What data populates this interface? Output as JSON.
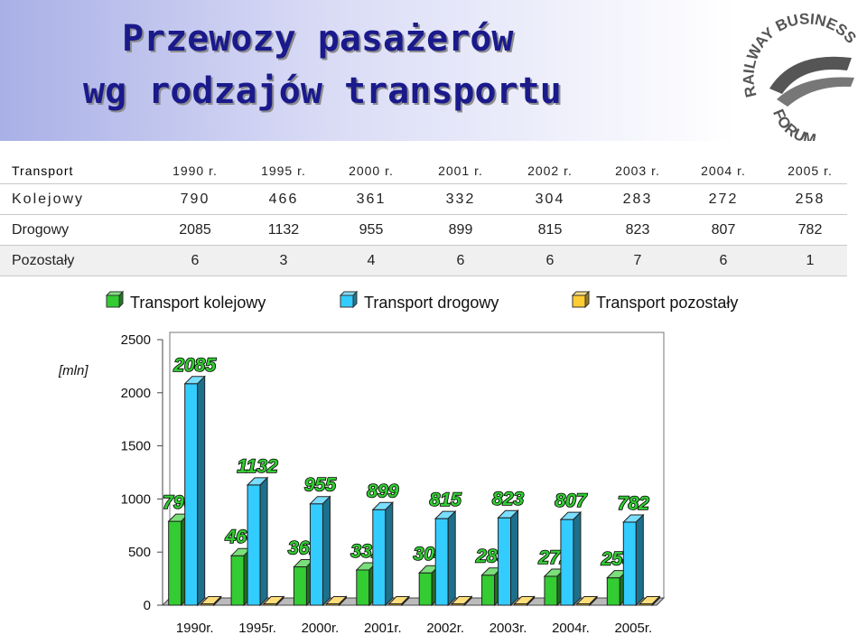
{
  "title": {
    "line1": "Przewozy pasażerów",
    "line2": "wg rodzajów transportu"
  },
  "logo": {
    "text_top": "RAILWAY BUSINESS",
    "text_bottom": "FORUM"
  },
  "table": {
    "header_label": "Transport",
    "headers": [
      "1990 r.",
      "1995 r.",
      "2000 r.",
      "2001 r.",
      "2002 r.",
      "2003 r.",
      "2004 r.",
      "2005 r."
    ],
    "rows": [
      {
        "label": "Kolejowy",
        "values": [
          "790",
          "466",
          "361",
          "332",
          "304",
          "283",
          "272",
          "258"
        ]
      },
      {
        "label": "Drogowy",
        "values": [
          "2085",
          "1132",
          "955",
          "899",
          "815",
          "823",
          "807",
          "782"
        ]
      },
      {
        "label": "Pozostały",
        "values": [
          "6",
          "3",
          "4",
          "6",
          "6",
          "7",
          "6",
          "1"
        ]
      }
    ]
  },
  "chart_data": {
    "type": "bar",
    "categories": [
      "1990r.",
      "1995r.",
      "2000r.",
      "2001r.",
      "2002r.",
      "2003r.",
      "2004r.",
      "2005r."
    ],
    "series": [
      {
        "name": "Transport kolejowy",
        "values": [
          790,
          466,
          361,
          332,
          304,
          283,
          272,
          258
        ],
        "color": "#33cc33"
      },
      {
        "name": "Transport drogowy",
        "values": [
          2085,
          1132,
          955,
          899,
          815,
          823,
          807,
          782
        ],
        "color": "#33ccff"
      },
      {
        "name": "Transport pozostały",
        "values": [
          6,
          3,
          4,
          6,
          6,
          7,
          6,
          1
        ],
        "color": "#ffcc33"
      }
    ],
    "ylabel": "[mln]",
    "ylim": [
      0,
      2500
    ],
    "yticks": [
      0,
      500,
      1000,
      1500,
      2000,
      2500
    ],
    "legend_position": "top",
    "grid": false,
    "data_label_color": "#33cc33"
  }
}
